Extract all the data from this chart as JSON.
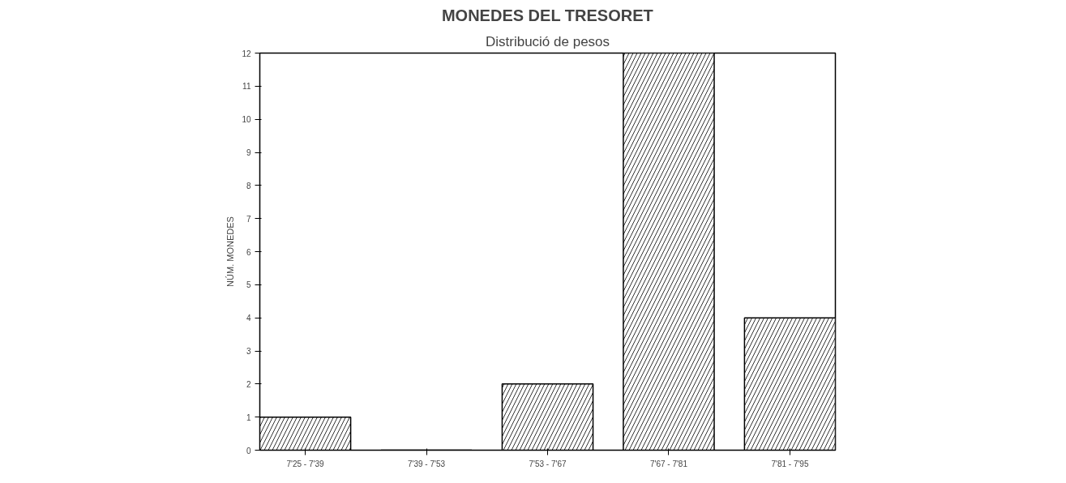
{
  "chart_data": {
    "type": "bar",
    "title": "MONEDES DEL TRESORET",
    "subtitle": "Distribució de pesos",
    "ylabel": "NÚM. MONEDES",
    "categories": [
      "7'25 - 7'39",
      "7'39 - 7'53",
      "7'53 - 7'67",
      "7'67 - 7'81",
      "7'81 - 7'95"
    ],
    "values": [
      1,
      0,
      2,
      12,
      4
    ],
    "color": "#000000",
    "ylim": [
      0,
      12
    ],
    "yticks": [
      0,
      1,
      2,
      3,
      4,
      5,
      6,
      7,
      8,
      9,
      10,
      11,
      12
    ],
    "grid": false
  }
}
